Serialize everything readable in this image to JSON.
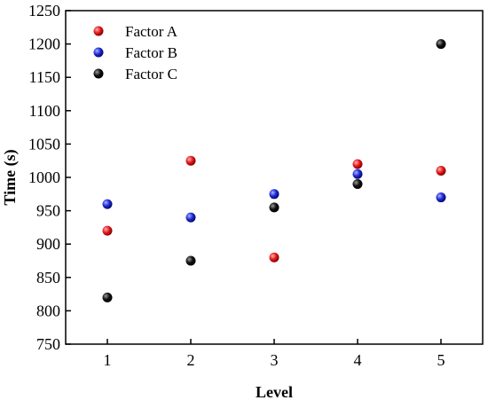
{
  "chart_data": {
    "type": "scatter",
    "title": "",
    "xlabel": "Level",
    "ylabel": "Time (s)",
    "xlim": [
      0.5,
      5.5
    ],
    "ylim": [
      750,
      1250
    ],
    "x_ticks": [
      1,
      2,
      3,
      4,
      5
    ],
    "y_ticks": [
      750,
      800,
      850,
      900,
      950,
      1000,
      1050,
      1100,
      1150,
      1200,
      1250
    ],
    "grid": false,
    "legend_position": "top-left",
    "series": [
      {
        "name": "Factor A",
        "color": "#e31a1c",
        "x": [
          1,
          2,
          3,
          4,
          5
        ],
        "y": [
          920,
          1025,
          880,
          1020,
          1010
        ]
      },
      {
        "name": "Factor B",
        "color": "#1f2bd6",
        "x": [
          1,
          2,
          3,
          4,
          5
        ],
        "y": [
          960,
          940,
          975,
          1005,
          970
        ]
      },
      {
        "name": "Factor C",
        "color": "#111111",
        "x": [
          1,
          2,
          3,
          4,
          5
        ],
        "y": [
          820,
          875,
          955,
          990,
          1200
        ]
      }
    ]
  }
}
